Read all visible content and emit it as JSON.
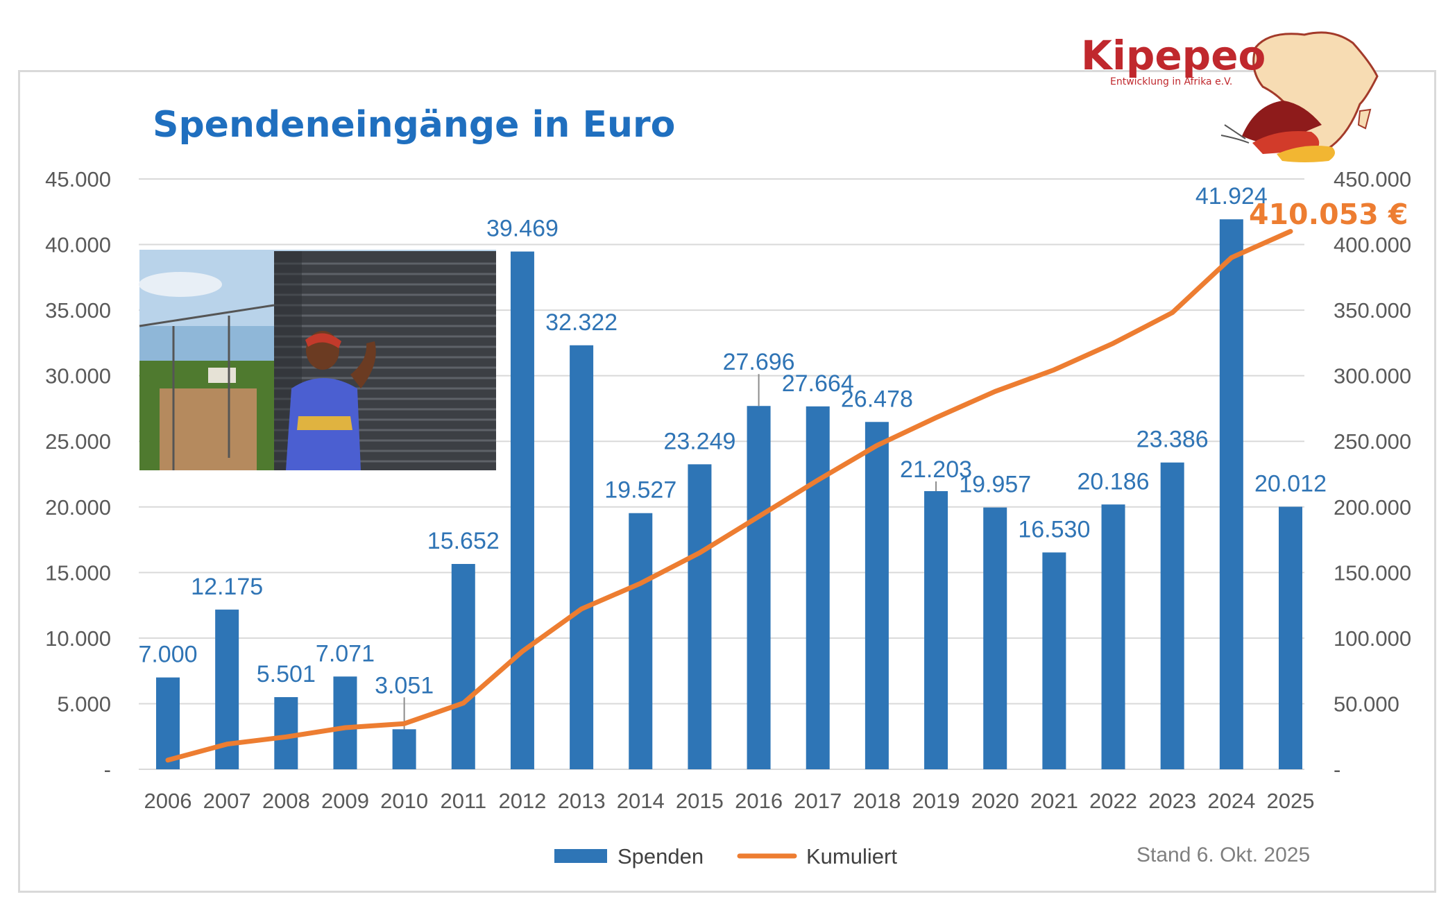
{
  "logo": {
    "name": "Kipepeo",
    "subtitle": "Entwicklung in Afrika e.V."
  },
  "chart_data": {
    "type": "bar",
    "title": "Spendeneingänge in Euro",
    "categories": [
      "2006",
      "2007",
      "2008",
      "2009",
      "2010",
      "2011",
      "2012",
      "2013",
      "2014",
      "2015",
      "2016",
      "2017",
      "2018",
      "2019",
      "2020",
      "2021",
      "2022",
      "2023",
      "2024",
      "2025"
    ],
    "series": [
      {
        "name": "Spenden",
        "type": "bar",
        "axis": "left",
        "color": "#2e75b6",
        "values": [
          7000,
          12175,
          5501,
          7071,
          3051,
          15652,
          39469,
          32322,
          19527,
          23249,
          27696,
          27664,
          26478,
          21203,
          19957,
          16530,
          20186,
          23386,
          41924,
          20012
        ],
        "labels": [
          "7.000",
          "12.175",
          "5.501",
          "7.071",
          "3.051",
          "15.652",
          "39.469",
          "32.322",
          "19.527",
          "23.249",
          "27.696",
          "27.664",
          "26.478",
          "21.203",
          "19.957",
          "16.530",
          "20.186",
          "23.386",
          "41.924",
          "20.012"
        ]
      },
      {
        "name": "Kumuliert",
        "type": "line",
        "axis": "right",
        "color": "#ed7d31",
        "values": [
          7000,
          19175,
          24676,
          31747,
          34798,
          50450,
          89919,
          122241,
          141768,
          165017,
          192713,
          220377,
          246855,
          268058,
          288015,
          304545,
          324731,
          348117,
          390041,
          410053
        ]
      }
    ],
    "left_axis": {
      "min": 0,
      "max": 45000,
      "ticks": [
        "-",
        "5.000",
        "10.000",
        "15.000",
        "20.000",
        "25.000",
        "30.000",
        "35.000",
        "40.000",
        "45.000"
      ]
    },
    "right_axis": {
      "min": 0,
      "max": 450000,
      "ticks": [
        "-",
        "50.000",
        "100.000",
        "150.000",
        "200.000",
        "250.000",
        "300.000",
        "350.000",
        "400.000",
        "450.000"
      ]
    },
    "grid": true,
    "legend_position": "bottom",
    "total_label": "410.053 €",
    "footnote": "Stand 6. Okt. 2025"
  }
}
